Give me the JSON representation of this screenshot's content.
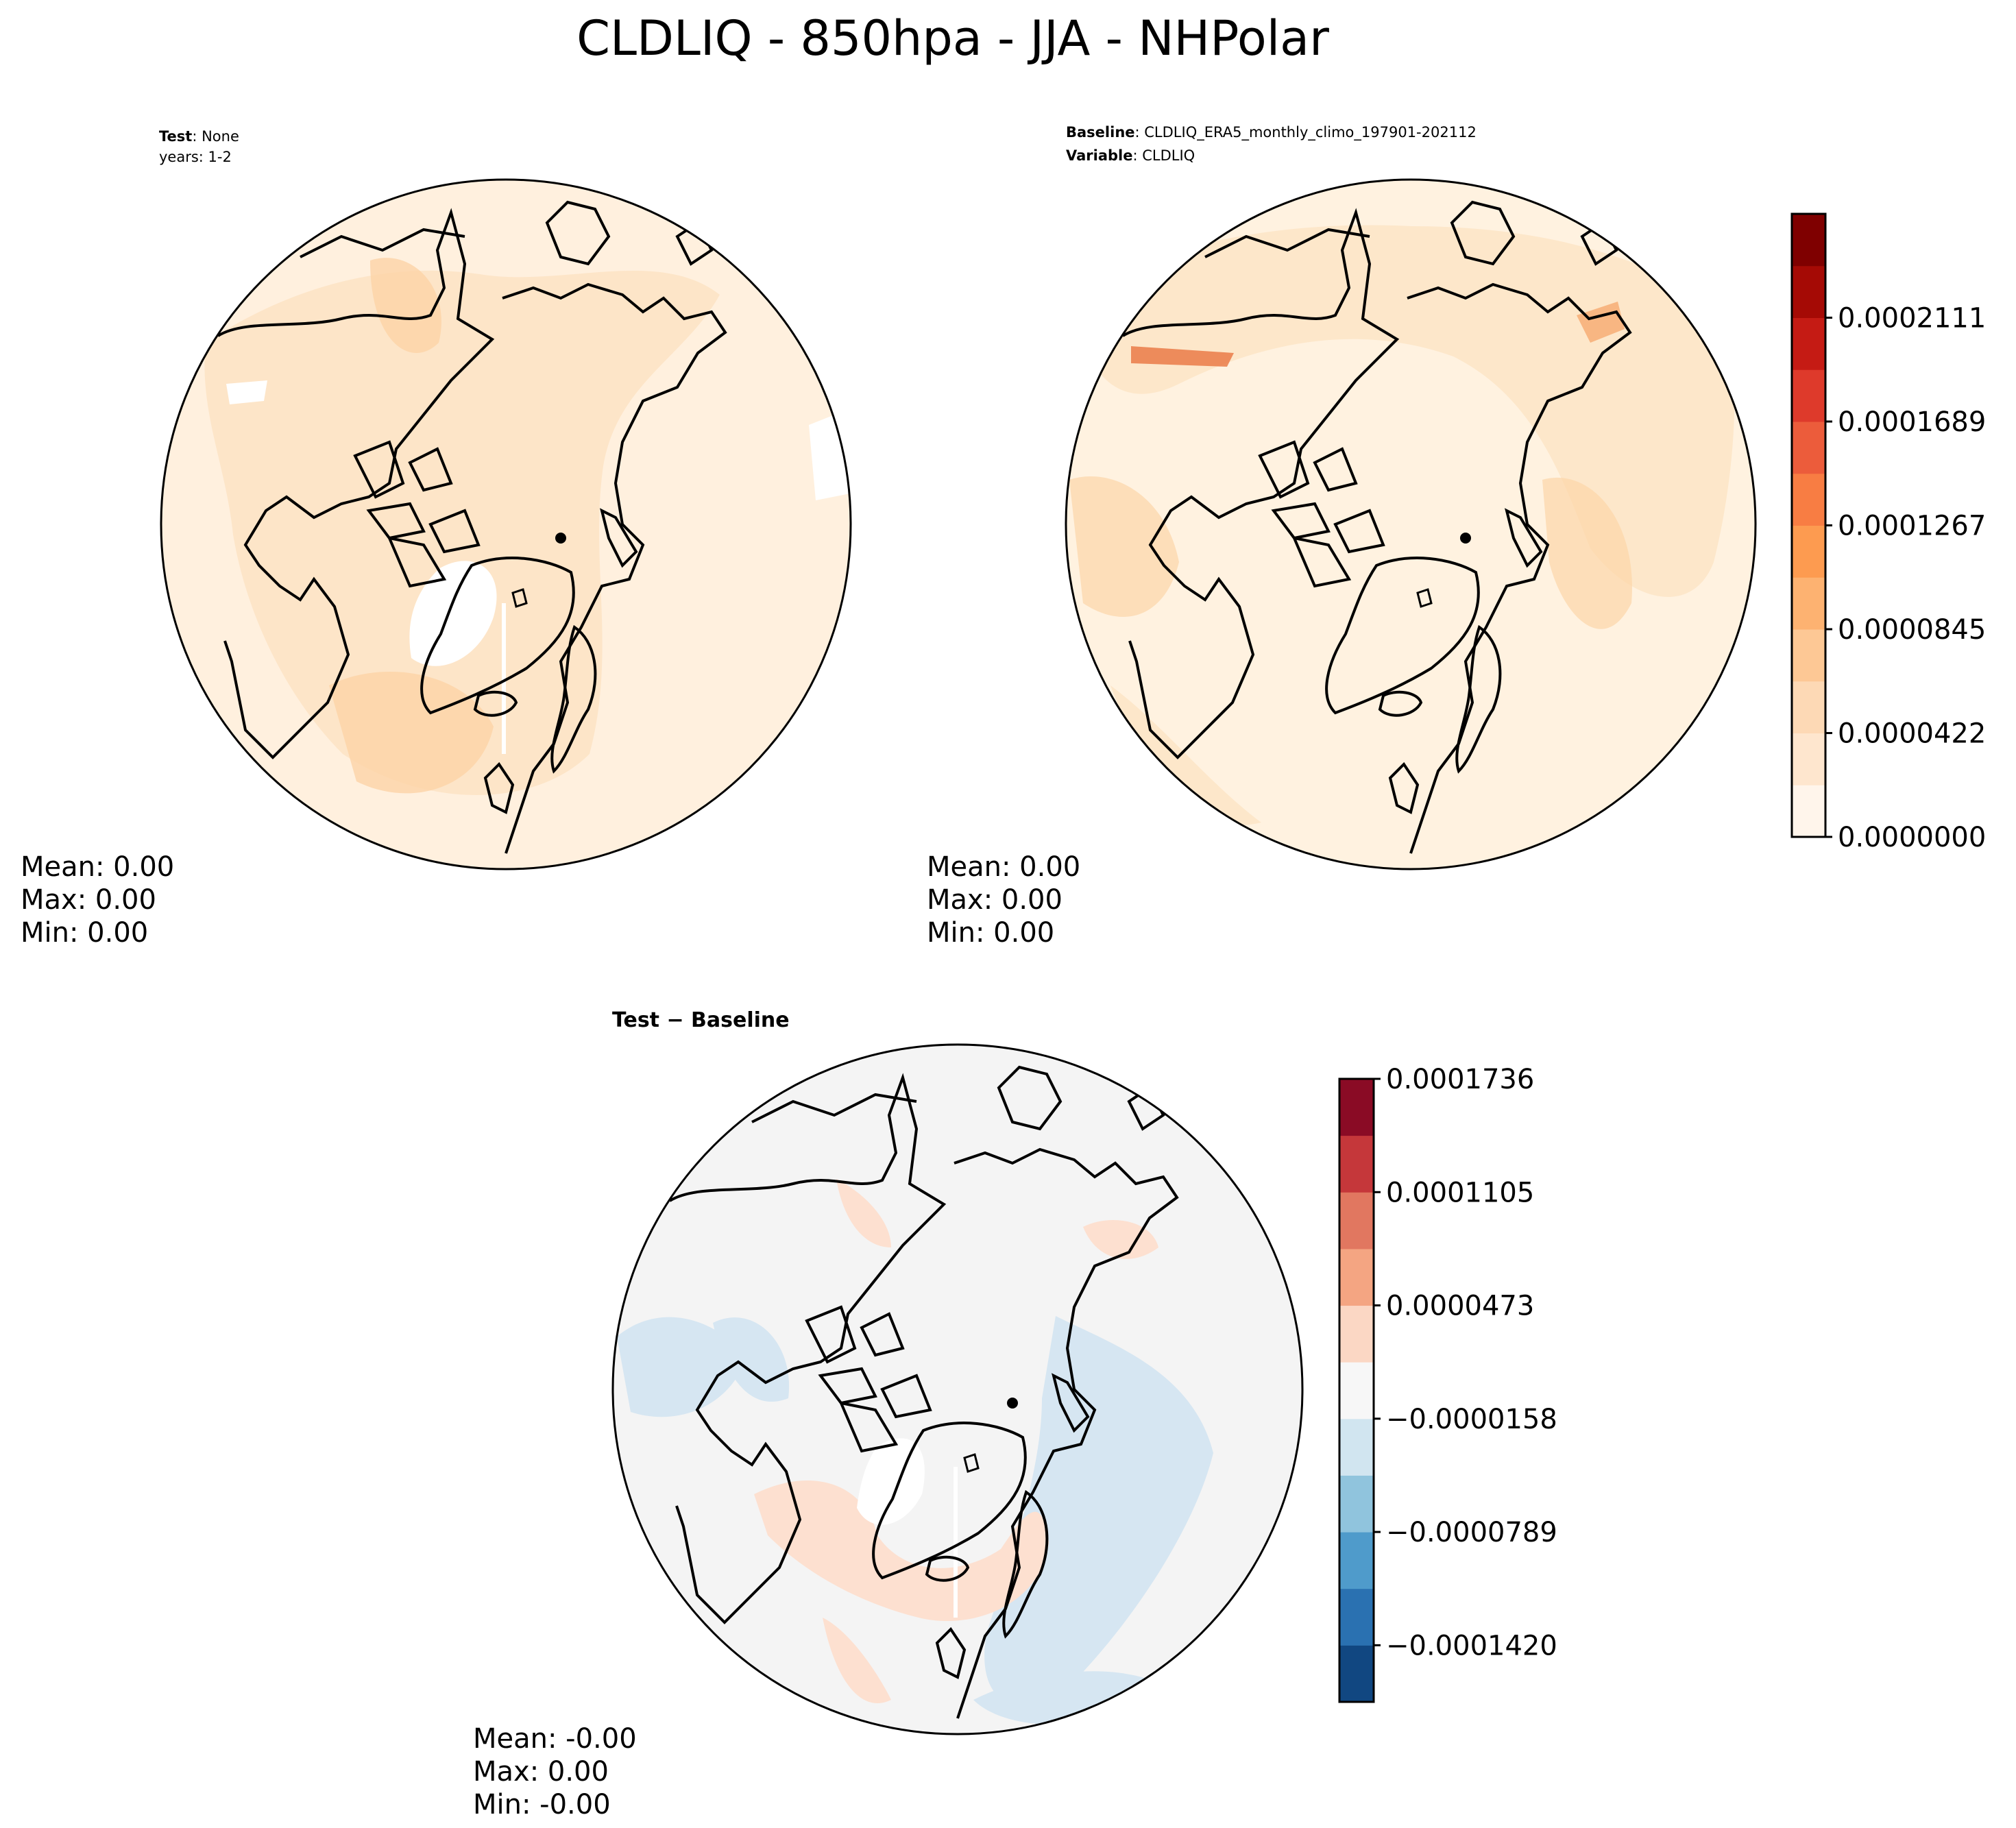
{
  "figure": {
    "title": "CLDLIQ - 850hpa - JJA - NHPolar"
  },
  "panels": {
    "test": {
      "label_bold": "Test",
      "label_value": ": None",
      "line2": "years: 1-2",
      "stats": {
        "mean": "Mean:  0.00",
        "max": "Max:  0.00",
        "min": "Min:  0.00"
      }
    },
    "baseline": {
      "label_bold": "Baseline",
      "label_value": ": CLDLIQ_ERA5_monthly_climo_197901-202112",
      "label2_bold": "Variable",
      "label2_value": ": CLDLIQ",
      "stats": {
        "mean": "Mean:  0.00",
        "max": "Max:  0.00",
        "min": "Min:  0.00"
      }
    },
    "diff": {
      "label": "Test − Baseline",
      "stats": {
        "mean": "Mean: -0.00",
        "max": "Max:  0.00",
        "min": "Min: -0.00"
      }
    }
  },
  "colorbars": {
    "main": {
      "colors": [
        "#fff5eb",
        "#fee6ce",
        "#fdd9b5",
        "#fdc895",
        "#fdb271",
        "#fd9b50",
        "#f87d43",
        "#ec5c3b",
        "#de3a2b",
        "#c51b14",
        "#a50a05",
        "#7f0000"
      ],
      "tick_labels": [
        "0.0000000",
        "0.0000422",
        "0.0000845",
        "0.0001267",
        "0.0001689",
        "0.0002111"
      ]
    },
    "diff": {
      "colors": [
        "#114781",
        "#2a71b1",
        "#4f9bcb",
        "#90c4dd",
        "#d1e5f0",
        "#f7f7f7",
        "#fbd7c4",
        "#f4a582",
        "#e17760",
        "#c5373a",
        "#8a0b25"
      ],
      "tick_labels": [
        "−0.0001420",
        "−0.0000789",
        "−0.0000158",
        "0.0000473",
        "0.0001105",
        "0.0001736"
      ]
    }
  },
  "map_colors": {
    "test_base": "#fff0de",
    "test_mid": "#fde3c4",
    "test_high": "#fcd3a6",
    "base_base": "#fff2e0",
    "base_mid": "#fde6c8",
    "base_high": "#fcd6a8",
    "diff_base": "#f4f4f4",
    "diff_blue": "#d6e6f2",
    "diff_red": "#fde0d0"
  }
}
